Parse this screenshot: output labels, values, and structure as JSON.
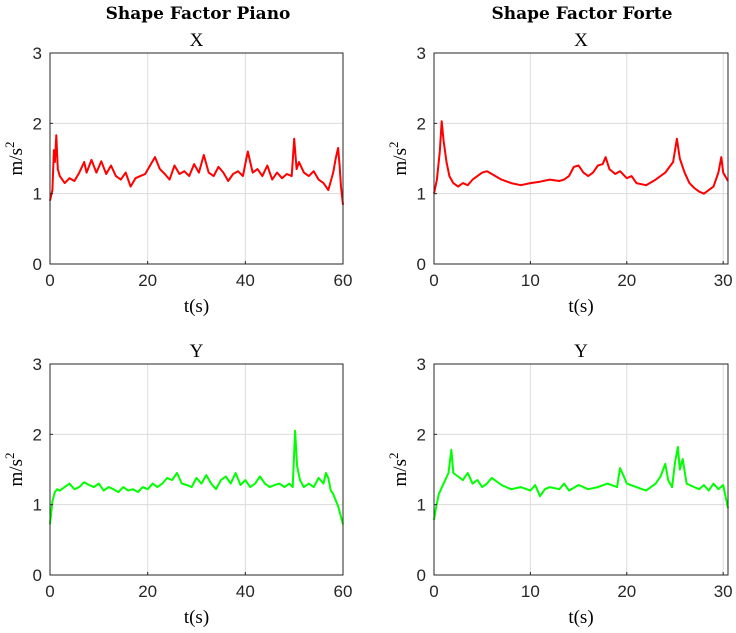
{
  "column_titles": [
    "Shape Factor Piano",
    "Shape Factor Forte"
  ],
  "chart_data": [
    {
      "type": "line",
      "title": "X",
      "xlabel": "t(s)",
      "ylabel": "m/s",
      "ylabel_sup": "2",
      "xlim": [
        0,
        60
      ],
      "ylim": [
        0,
        3
      ],
      "xticks": [
        0,
        20,
        40,
        60
      ],
      "yticks": [
        0,
        1,
        2,
        3
      ],
      "grid": true,
      "color": "#ff0000",
      "series": [
        {
          "x": [
            0,
            0.5,
            0.8,
            1.0,
            1.3,
            1.6,
            2.0,
            3.0,
            4.0,
            5.0,
            6.0,
            7.0,
            7.5,
            8.5,
            9.5,
            10.5,
            11.5,
            12.5,
            13.5,
            14.5,
            15.5,
            16.5,
            17.5,
            18.5,
            19.5,
            20.5,
            21.5,
            22.5,
            23.5,
            24.5,
            25.5,
            26.5,
            27.5,
            28.5,
            29.5,
            30.5,
            31.5,
            32.5,
            33.5,
            34.5,
            35.5,
            36.5,
            37.5,
            38.5,
            39.5,
            40.5,
            41.5,
            42.5,
            43.5,
            44.5,
            45.5,
            46.5,
            47.5,
            48.5,
            49.5,
            50.0,
            50.5,
            51.0,
            52.0,
            53.0,
            54.0,
            55.0,
            56.0,
            57.0,
            58.0,
            58.5,
            59.0,
            59.3,
            59.6,
            60
          ],
          "y": [
            0.9,
            1.05,
            1.62,
            1.45,
            1.83,
            1.35,
            1.25,
            1.15,
            1.22,
            1.18,
            1.3,
            1.45,
            1.3,
            1.48,
            1.3,
            1.46,
            1.28,
            1.4,
            1.25,
            1.2,
            1.3,
            1.1,
            1.22,
            1.25,
            1.28,
            1.4,
            1.52,
            1.35,
            1.28,
            1.2,
            1.4,
            1.28,
            1.32,
            1.25,
            1.42,
            1.3,
            1.55,
            1.3,
            1.25,
            1.38,
            1.3,
            1.18,
            1.28,
            1.32,
            1.25,
            1.6,
            1.3,
            1.35,
            1.25,
            1.4,
            1.2,
            1.3,
            1.22,
            1.28,
            1.25,
            1.78,
            1.35,
            1.45,
            1.3,
            1.25,
            1.32,
            1.2,
            1.15,
            1.05,
            1.3,
            1.5,
            1.65,
            1.4,
            1.1,
            0.84
          ]
        }
      ]
    },
    {
      "type": "line",
      "title": "X",
      "xlabel": "t(s)",
      "ylabel": "m/s",
      "ylabel_sup": "2",
      "xlim": [
        0,
        30.5
      ],
      "ylim": [
        0,
        3
      ],
      "xticks": [
        0,
        10,
        20,
        30
      ],
      "yticks": [
        0,
        1,
        2,
        3
      ],
      "grid": true,
      "color": "#ff0000",
      "series": [
        {
          "x": [
            0,
            0.3,
            0.6,
            0.8,
            1.0,
            1.3,
            1.6,
            2.0,
            2.5,
            3.0,
            3.5,
            4.0,
            4.5,
            5.0,
            5.5,
            6.0,
            7.0,
            8.0,
            9.0,
            10.0,
            11.0,
            12.0,
            13.0,
            13.5,
            14.0,
            14.5,
            15.0,
            15.5,
            16.0,
            16.5,
            17.0,
            17.5,
            17.8,
            18.2,
            18.8,
            19.3,
            20.0,
            20.5,
            21.0,
            22.0,
            23.0,
            24.0,
            24.8,
            25.2,
            25.5,
            26.0,
            26.5,
            27.0,
            27.5,
            28.0,
            28.5,
            29.0,
            29.5,
            29.8,
            30.0,
            30.5
          ],
          "y": [
            1.0,
            1.2,
            1.6,
            2.03,
            1.75,
            1.45,
            1.25,
            1.15,
            1.1,
            1.15,
            1.12,
            1.2,
            1.25,
            1.3,
            1.32,
            1.28,
            1.2,
            1.15,
            1.12,
            1.15,
            1.17,
            1.2,
            1.18,
            1.2,
            1.25,
            1.38,
            1.4,
            1.3,
            1.25,
            1.3,
            1.4,
            1.42,
            1.52,
            1.35,
            1.28,
            1.32,
            1.22,
            1.25,
            1.15,
            1.12,
            1.2,
            1.3,
            1.45,
            1.78,
            1.5,
            1.3,
            1.15,
            1.08,
            1.03,
            1.0,
            1.05,
            1.1,
            1.3,
            1.52,
            1.3,
            1.18
          ]
        }
      ]
    },
    {
      "type": "line",
      "title": "Y",
      "xlabel": "t(s)",
      "ylabel": "m/s",
      "ylabel_sup": "2",
      "xlim": [
        0,
        60
      ],
      "ylim": [
        0,
        3
      ],
      "xticks": [
        0,
        20,
        40,
        60
      ],
      "yticks": [
        0,
        1,
        2,
        3
      ],
      "grid": true,
      "color": "#00ff00",
      "series": [
        {
          "x": [
            0,
            0.5,
            1.0,
            1.5,
            2.0,
            3.0,
            4.0,
            5.0,
            6.0,
            7.0,
            8.0,
            9.0,
            10.0,
            11.0,
            12.0,
            13.0,
            14.0,
            15.0,
            16.0,
            17.0,
            18.0,
            19.0,
            20.0,
            21.0,
            22.0,
            23.0,
            24.0,
            25.0,
            26.0,
            27.0,
            28.0,
            29.0,
            30.0,
            31.0,
            32.0,
            33.0,
            34.0,
            35.0,
            36.0,
            37.0,
            38.0,
            39.0,
            40.0,
            41.0,
            42.0,
            43.0,
            44.0,
            45.0,
            46.0,
            47.0,
            48.0,
            49.0,
            49.7,
            50.2,
            50.6,
            51.2,
            52.0,
            53.0,
            54.0,
            55.0,
            56.0,
            56.5,
            57.0,
            57.5,
            58.0,
            59.0,
            60
          ],
          "y": [
            0.72,
            1.05,
            1.18,
            1.22,
            1.2,
            1.25,
            1.3,
            1.22,
            1.25,
            1.32,
            1.28,
            1.25,
            1.3,
            1.2,
            1.25,
            1.22,
            1.18,
            1.25,
            1.2,
            1.22,
            1.18,
            1.25,
            1.22,
            1.3,
            1.25,
            1.3,
            1.38,
            1.35,
            1.45,
            1.3,
            1.28,
            1.25,
            1.38,
            1.3,
            1.42,
            1.3,
            1.22,
            1.35,
            1.4,
            1.3,
            1.45,
            1.28,
            1.35,
            1.25,
            1.3,
            1.4,
            1.3,
            1.25,
            1.28,
            1.3,
            1.25,
            1.3,
            1.25,
            2.05,
            1.55,
            1.35,
            1.25,
            1.3,
            1.25,
            1.38,
            1.3,
            1.45,
            1.38,
            1.2,
            1.15,
            0.98,
            0.72
          ]
        }
      ]
    },
    {
      "type": "line",
      "title": "Y",
      "xlabel": "t(s)",
      "ylabel": "m/s",
      "ylabel_sup": "2",
      "xlim": [
        0,
        30.5
      ],
      "ylim": [
        0,
        3
      ],
      "xticks": [
        0,
        10,
        20,
        30
      ],
      "yticks": [
        0,
        1,
        2,
        3
      ],
      "grid": true,
      "color": "#00ff00",
      "series": [
        {
          "x": [
            0,
            0.2,
            0.5,
            1.0,
            1.5,
            1.8,
            2.0,
            2.5,
            3.0,
            3.5,
            4.0,
            4.5,
            5.0,
            5.5,
            6.0,
            7.0,
            8.0,
            9.0,
            10.0,
            10.5,
            11.0,
            11.5,
            12.0,
            13.0,
            13.5,
            14.0,
            15.0,
            16.0,
            17.0,
            18.0,
            19.0,
            19.3,
            19.7,
            20.0,
            21.0,
            22.0,
            23.0,
            23.5,
            24.0,
            24.3,
            24.7,
            25.0,
            25.3,
            25.5,
            25.8,
            26.2,
            27.0,
            27.5,
            28.0,
            28.5,
            29.0,
            29.5,
            30.0,
            30.5
          ],
          "y": [
            0.78,
            0.95,
            1.15,
            1.3,
            1.45,
            1.78,
            1.45,
            1.4,
            1.35,
            1.45,
            1.3,
            1.35,
            1.25,
            1.3,
            1.38,
            1.28,
            1.22,
            1.25,
            1.2,
            1.28,
            1.12,
            1.22,
            1.25,
            1.22,
            1.3,
            1.2,
            1.28,
            1.22,
            1.25,
            1.3,
            1.25,
            1.52,
            1.4,
            1.3,
            1.25,
            1.2,
            1.3,
            1.4,
            1.58,
            1.35,
            1.25,
            1.6,
            1.82,
            1.5,
            1.65,
            1.3,
            1.25,
            1.22,
            1.28,
            1.2,
            1.3,
            1.22,
            1.28,
            0.95
          ]
        }
      ]
    }
  ]
}
